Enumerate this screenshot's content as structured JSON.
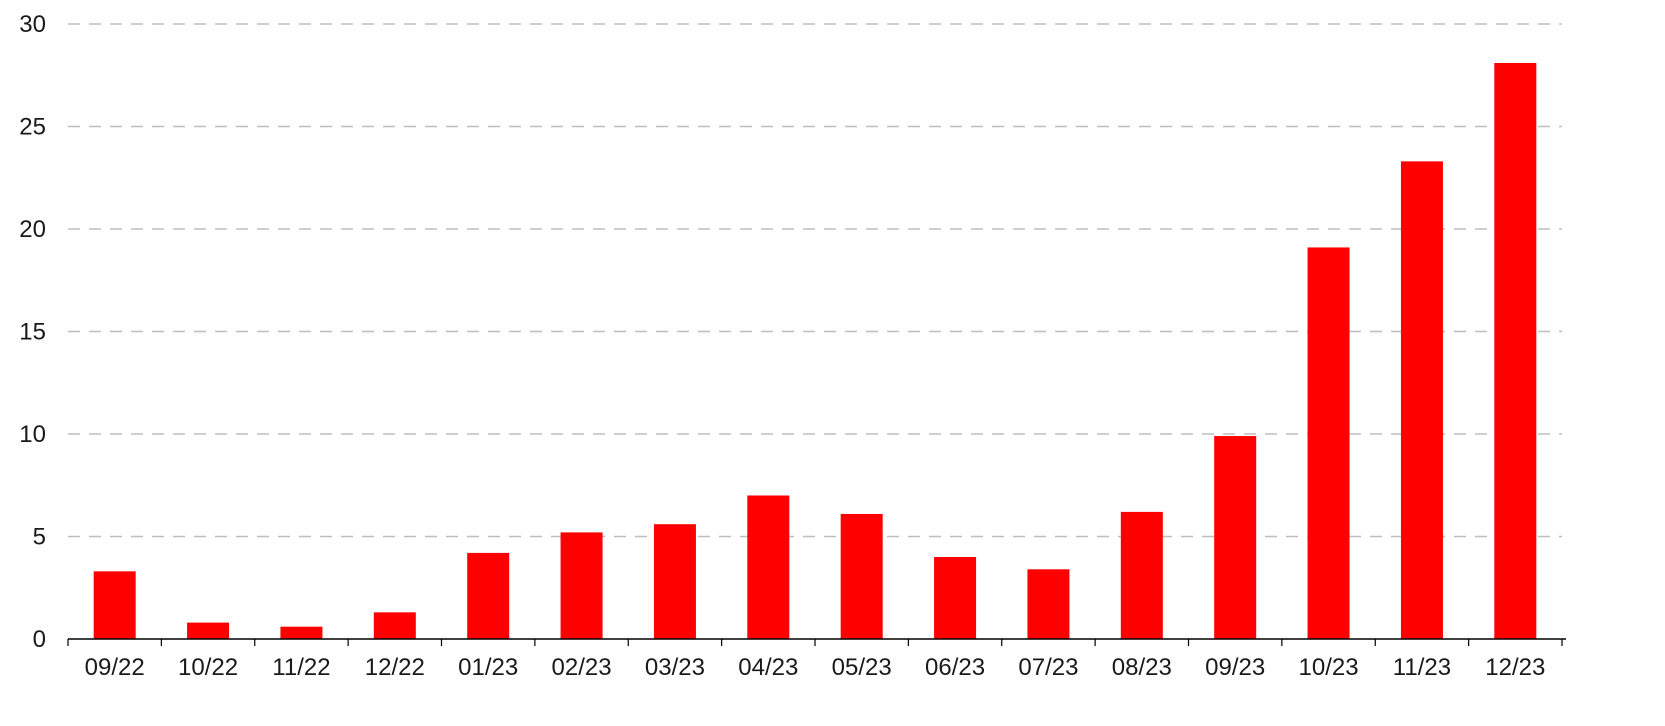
{
  "chart_data": {
    "type": "bar",
    "categories": [
      "09/22",
      "10/22",
      "11/22",
      "12/22",
      "01/23",
      "02/23",
      "03/23",
      "04/23",
      "05/23",
      "06/23",
      "07/23",
      "08/23",
      "09/23",
      "10/23",
      "11/23",
      "12/23"
    ],
    "values": [
      3.3,
      0.8,
      0.6,
      1.3,
      4.2,
      5.2,
      5.6,
      7.0,
      6.1,
      4.0,
      3.4,
      6.2,
      9.9,
      19.1,
      23.3,
      28.1
    ],
    "title": "",
    "xlabel": "",
    "ylabel": "",
    "ylim": [
      0,
      30
    ],
    "yticks": [
      "0",
      "5",
      "10",
      "15",
      "20",
      "25",
      "30"
    ],
    "grid": "horizontal dashed",
    "legend": "none",
    "bar_color": "#ff0000"
  }
}
